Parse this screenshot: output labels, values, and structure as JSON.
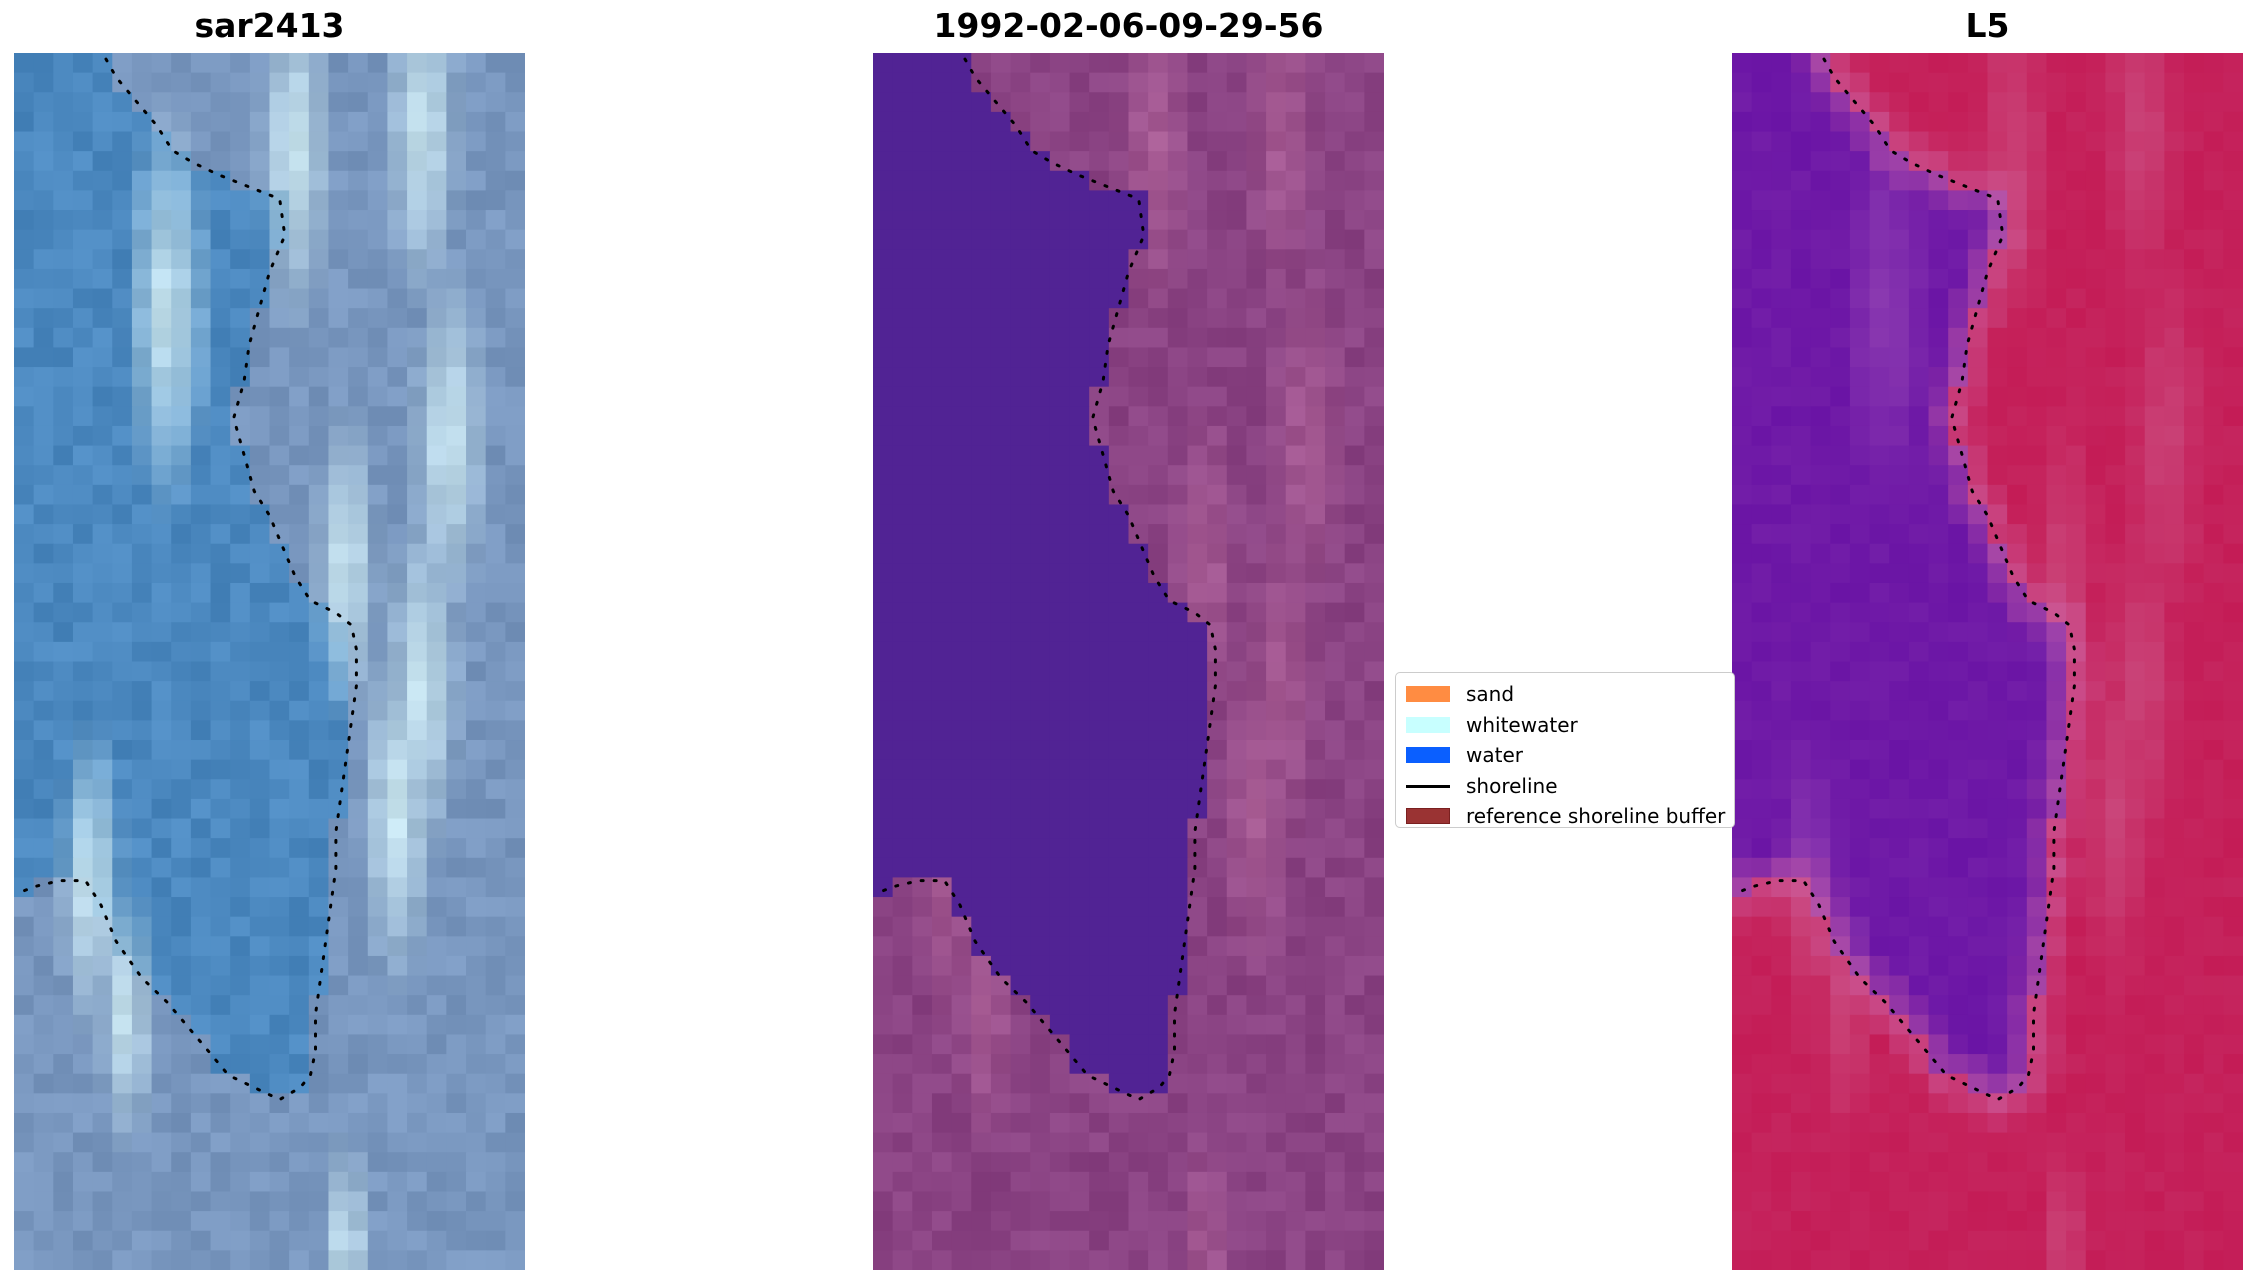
{
  "panels": [
    {
      "title": "sar2413",
      "style": "rgb"
    },
    {
      "title": "1992-02-06-09-29-56",
      "style": "classified"
    },
    {
      "title": "L5",
      "style": "index"
    }
  ],
  "legend": {
    "items": [
      {
        "label": "sand",
        "color": "#ff8c42",
        "kind": "patch"
      },
      {
        "label": "whitewater",
        "color": "#c8ffff",
        "kind": "patch"
      },
      {
        "label": "water",
        "color": "#0a5fff",
        "kind": "patch"
      },
      {
        "label": "shoreline",
        "color": "#000000",
        "kind": "line"
      },
      {
        "label": "reference shoreline buffer",
        "color": "#9a3333",
        "kind": "patch"
      }
    ]
  },
  "colors": {
    "water_class": "#512394",
    "land_class": "#8a4383",
    "rgb_water": "#4b88bf",
    "rgb_surf": "#c7e4ef",
    "index_water": "#6a14a5",
    "index_land": "#c41c56"
  }
}
